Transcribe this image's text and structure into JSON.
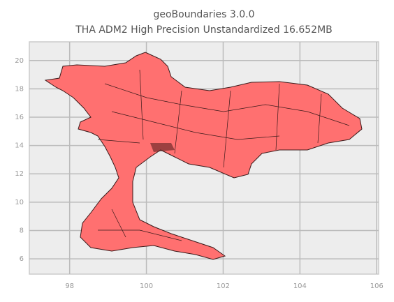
{
  "chart_data": {
    "type": "map",
    "title": "geoBoundaries 3.0.0",
    "subtitle": "THA ADM2 High Precision Unstandardized 16.652MB",
    "xlim": [
      96.95,
      106.05
    ],
    "xticks": [
      98,
      100,
      102,
      104,
      106
    ],
    "ylim": [
      4.92,
      21.32
    ],
    "yticks": [
      6,
      8,
      10,
      12,
      14,
      16,
      18,
      20
    ],
    "grid": true,
    "color": "#ff7070"
  }
}
